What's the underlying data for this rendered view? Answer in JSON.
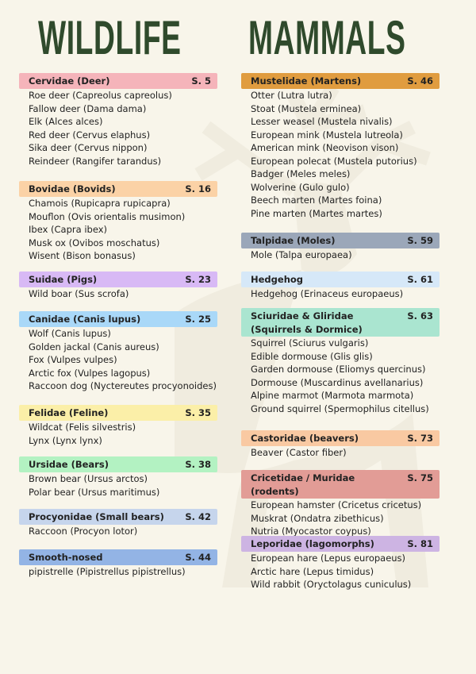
{
  "titles": {
    "left": "WILDLIFE",
    "right": "MAMMALS"
  },
  "left_sections": [
    {
      "name": "Cervidae (Deer)",
      "page": "S. 5",
      "color": "#f5b4ba",
      "items": [
        "Roe deer (Capreolus capreolus)",
        "Fallow deer (Dama dama)",
        "Elk (Alces alces)",
        "Red deer (Cervus elaphus)",
        "Sika deer (Cervus nippon)",
        "Reindeer (Rangifer tarandus)"
      ]
    },
    {
      "name": "Bovidae (Bovids)",
      "page": "S. 16",
      "color": "#fbd2a6",
      "items": [
        "Chamois (Rupicapra rupicapra)",
        "Mouflon (Ovis orientalis musimon)",
        "Ibex (Capra ibex)",
        "Musk ox (Ovibos moschatus)",
        "Wisent (Bison bonasus)"
      ]
    },
    {
      "name": "Suidae (Pigs)",
      "page": "S. 23",
      "color": "#d8b9f5",
      "items": [
        "Wild boar (Sus scrofa)"
      ]
    },
    {
      "name": "Canidae (Canis lupus)",
      "page": "S. 25",
      "color": "#a9d8f8",
      "items": [
        "Wolf (Canis lupus)",
        "Golden jackal (Canis aureus)",
        "Fox (Vulpes vulpes)",
        "Arctic fox (Vulpes lagopus)",
        "Raccoon dog (Nyctereutes procyonoides)"
      ]
    },
    {
      "name": "Felidae (Feline)",
      "page": "S. 35",
      "color": "#fbefa8",
      "items": [
        "Wildcat (Felis silvestris)",
        "Lynx (Lynx lynx)"
      ]
    },
    {
      "name": "Ursidae (Bears)",
      "page": "S. 38",
      "color": "#b3f2c2",
      "items": [
        "Brown bear (Ursus arctos)",
        "Polar bear (Ursus maritimus)"
      ]
    },
    {
      "name": "Procyonidae (Small bears)",
      "page": "S. 42",
      "color": "#c6d5ec",
      "items": [
        "Raccoon (Procyon lotor)"
      ]
    },
    {
      "name": "Smooth-nosed",
      "page": "S. 44",
      "color": "#93b4e5",
      "items": [
        "pipistrelle (Pipistrellus pipistrellus)"
      ]
    }
  ],
  "right_sections": [
    {
      "name": "Mustelidae (Martens)",
      "page": "S. 46",
      "color": "#e09c3f",
      "items": [
        "Otter (Lutra lutra)",
        "Stoat (Mustela erminea)",
        "Lesser weasel (Mustela nivalis)",
        "European mink (Mustela lutreola)",
        "American mink (Neovison vison)",
        "European polecat (Mustela putorius)",
        "Badger (Meles meles)",
        "Wolverine (Gulo gulo)",
        "Beech marten (Martes foina)",
        "Pine marten (Martes martes)"
      ]
    },
    {
      "name": "Talpidae (Moles)",
      "page": "S. 59",
      "color": "#9ba7b9",
      "items": [
        "Mole (Talpa europaea)"
      ]
    },
    {
      "name": "Hedgehog",
      "page": "S. 61",
      "color": "#d6e8f8",
      "items": [
        "Hedgehog (Erinaceus europaeus)"
      ]
    },
    {
      "name": "Sciuridae & Gliridae (Squirrels & Dormice)",
      "page": "S. 63",
      "color": "#aae5d0",
      "items": [
        "Squirrel (Sciurus vulgaris)",
        "Edible dormouse (Glis glis)",
        "Garden dormouse (Eliomys quercinus)",
        "Dormouse (Muscardinus avellanarius)",
        "Alpine marmot (Marmota marmota)",
        "Ground squirrel (Spermophilus citellus)"
      ]
    },
    {
      "name": "Castoridae (beavers)",
      "page": "S. 73",
      "color": "#f9c9a2",
      "items": [
        "Beaver (Castor fiber)"
      ]
    },
    {
      "name": "Cricetidae / Muridae (rodents)",
      "page": "S. 75",
      "color": "#e29c96",
      "items": [
        "European hamster (Cricetus cricetus)",
        "Muskrat (Ondatra zibethicus)",
        "Nutria (Myocastor coypus)"
      ]
    },
    {
      "name": "Leporidae (lagomorphs)",
      "page": "S. 81",
      "color": "#cdb4e3",
      "items": [
        "European hare (Lepus europaeus)",
        "Arctic hare (Lepus timidus)",
        "Wild rabbit (Oryctolagus cuniculus)"
      ]
    }
  ]
}
